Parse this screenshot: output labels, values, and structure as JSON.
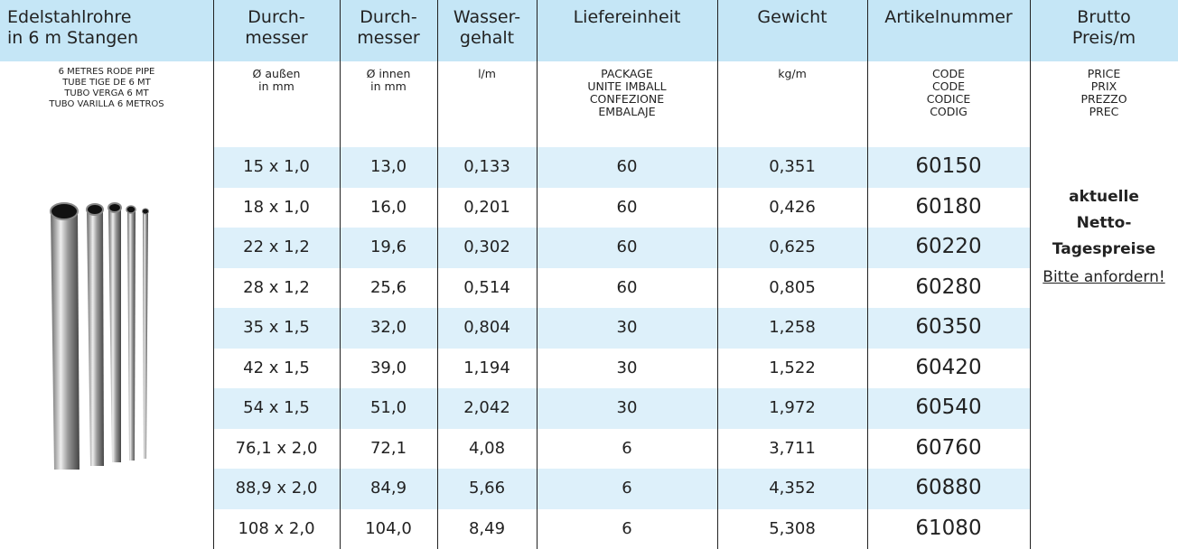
{
  "header": {
    "columns": [
      [
        "Edelstahlrohre",
        "in 6 m Stangen"
      ],
      [
        "Durch-",
        "messer"
      ],
      [
        "Durch-",
        "messer"
      ],
      [
        "Wasser-",
        "gehalt"
      ],
      [
        "Liefereinheit"
      ],
      [
        "Gewicht"
      ],
      [
        "Artikelnummer"
      ],
      [
        "Brutto",
        "Preis/m"
      ]
    ]
  },
  "subheader": [
    [
      "6 METRES RODE PIPE",
      "TUBE TIGE DE 6 MT",
      "TUBO VERGA 6 MT",
      "TUBO VARILLA 6 METROS"
    ],
    [
      "Ø außen",
      "in mm"
    ],
    [
      "Ø innen",
      "in mm"
    ],
    [
      "l/m"
    ],
    [
      "PACKAGE",
      "UNITE IMBALL",
      "CONFEZIONE",
      "EMBALAJE"
    ],
    [
      "kg/m"
    ],
    [
      "CODE",
      "CODE",
      "CODICE",
      "CODIG"
    ],
    [
      "PRICE",
      "PRIX",
      "PREZZO",
      "PREC"
    ]
  ],
  "table": {
    "rows": [
      [
        "15 x 1,0",
        "13,0",
        "0,133",
        "60",
        "0,351",
        "60150"
      ],
      [
        "18 x 1,0",
        "16,0",
        "0,201",
        "60",
        "0,426",
        "60180"
      ],
      [
        "22 x 1,2",
        "19,6",
        "0,302",
        "60",
        "0,625",
        "60220"
      ],
      [
        "28 x 1,2",
        "25,6",
        "0,514",
        "60",
        "0,805",
        "60280"
      ],
      [
        "35 x 1,5",
        "32,0",
        "0,804",
        "30",
        "1,258",
        "60350"
      ],
      [
        "42 x 1,5",
        "39,0",
        "1,194",
        "30",
        "1,522",
        "60420"
      ],
      [
        "54 x 1,5",
        "51,0",
        "2,042",
        "30",
        "1,972",
        "60540"
      ],
      [
        "76,1 x 2,0",
        "72,1",
        "4,08",
        "6",
        "3,711",
        "60760"
      ],
      [
        "88,9 x 2,0",
        "84,9",
        "5,66",
        "6",
        "4,352",
        "60880"
      ],
      [
        "108 x 2,0",
        "104,0",
        "8,49",
        "6",
        "5,308",
        "61080"
      ]
    ]
  },
  "price_note": {
    "lines": [
      "aktuelle",
      "Netto-",
      "Tagespreise"
    ],
    "link": "Bitte anfordern!"
  }
}
